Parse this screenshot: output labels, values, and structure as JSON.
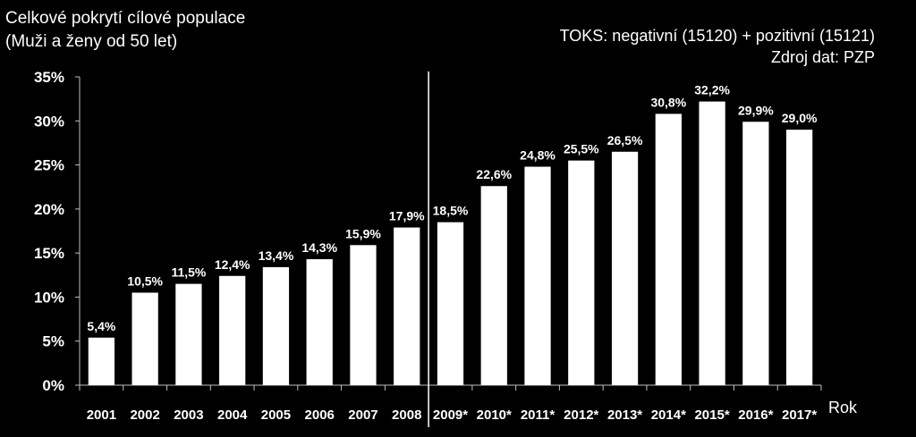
{
  "header": {
    "title_line1": "Celkové pokrytí cílové populace",
    "title_line2": "(Muži a ženy od 50 let)",
    "note_line1": "TOKS: negativní (15120) + pozitivní (15121)",
    "note_line2": "Zdroj dat: PZP"
  },
  "chart_data": {
    "type": "bar",
    "categories": [
      "2001",
      "2002",
      "2003",
      "2004",
      "2005",
      "2006",
      "2007",
      "2008",
      "2009*",
      "2010*",
      "2011*",
      "2012*",
      "2013*",
      "2014*",
      "2015*",
      "2016*",
      "2017*"
    ],
    "values": [
      5.4,
      10.5,
      11.5,
      12.4,
      13.4,
      14.3,
      15.9,
      17.9,
      18.5,
      22.6,
      24.8,
      25.5,
      26.5,
      30.8,
      32.2,
      29.9,
      29.0
    ],
    "data_labels": [
      "5,4%",
      "10,5%",
      "11,5%",
      "12,4%",
      "13,4%",
      "14,3%",
      "15,9%",
      "17,9%",
      "18,5%",
      "22,6%",
      "24,8%",
      "25,5%",
      "26,5%",
      "30,8%",
      "32,2%",
      "29,9%",
      "29,0%"
    ],
    "ylim": [
      0,
      35
    ],
    "y_ticks": [
      "0%",
      "5%",
      "10%",
      "15%",
      "20%",
      "25%",
      "30%",
      "35%"
    ],
    "xlabel": "Rok",
    "bar_color": "#ffffff",
    "background": "#000000",
    "divider_after_category": "2008"
  }
}
